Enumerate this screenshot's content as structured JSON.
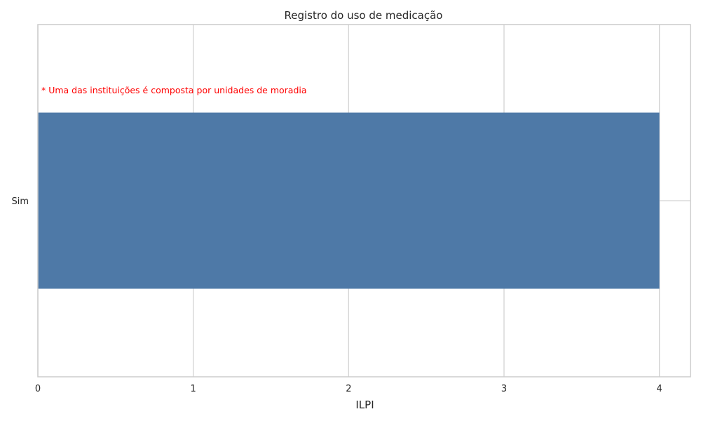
{
  "chart_data": {
    "type": "bar",
    "orientation": "horizontal",
    "title": "Registro do uso de medicação",
    "xlabel": "ILPI",
    "ylabel": "",
    "categories": [
      "Sim"
    ],
    "values": [
      4
    ],
    "xlim": [
      0,
      4.2
    ],
    "xticks": [
      0,
      1,
      2,
      3,
      4
    ],
    "grid": true,
    "annotation": "* Uma das instituições é composta por unidades de moradia",
    "colors": {
      "bar": "#4e79a7",
      "grid": "#d3d3d3",
      "axes": "#cccccc",
      "annotation": "#ff0000"
    }
  }
}
